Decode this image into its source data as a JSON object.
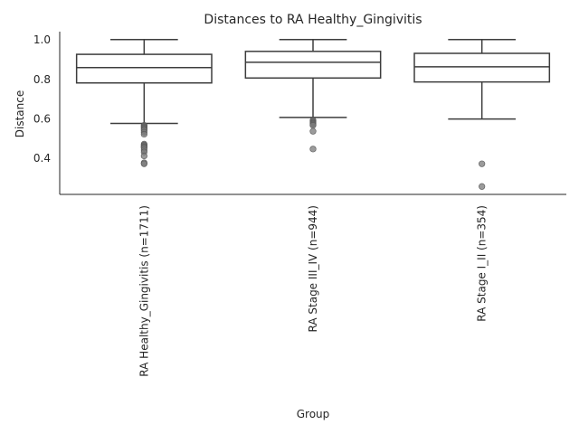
{
  "chart_data": {
    "type": "box",
    "title": "Distances to RA Healthy_Gingivitis",
    "xlabel": "Group",
    "ylabel": "Distance",
    "ylim": [
      0.215,
      1.04
    ],
    "yticks": [
      0.4,
      0.6,
      0.8,
      1.0
    ],
    "ytick_labels": [
      "0.4",
      "0.6",
      "0.8",
      "1.0"
    ],
    "grid": false,
    "categories": [
      "RA Healthy_Gingivitis (n=1711)",
      "RA Stage III_IV (n=944)",
      "RA Stage I_II (n=354)"
    ],
    "boxes": [
      {
        "category": "RA Healthy_Gingivitis (n=1711)",
        "whisker_low": 0.575,
        "q1": 0.78,
        "median": 0.858,
        "q3": 0.925,
        "whisker_high": 1.0,
        "outliers": [
          0.565,
          0.56,
          0.555,
          0.55,
          0.545,
          0.54,
          0.53,
          0.52,
          0.47,
          0.465,
          0.46,
          0.455,
          0.45,
          0.44,
          0.43,
          0.41,
          0.375,
          0.37
        ]
      },
      {
        "category": "RA Stage III_IV (n=944)",
        "whisker_low": 0.605,
        "q1": 0.805,
        "median": 0.885,
        "q3": 0.94,
        "whisker_high": 1.0,
        "outliers": [
          0.59,
          0.585,
          0.58,
          0.575,
          0.57,
          0.565,
          0.535,
          0.445
        ]
      },
      {
        "category": "RA Stage I_II (n=354)",
        "whisker_low": 0.597,
        "q1": 0.785,
        "median": 0.862,
        "q3": 0.93,
        "whisker_high": 1.0,
        "outliers": [
          0.37,
          0.255
        ]
      }
    ],
    "colors": {
      "box_line": "#3d3d3d",
      "outlier": "#7a7a7a",
      "axis": "#262626"
    }
  }
}
